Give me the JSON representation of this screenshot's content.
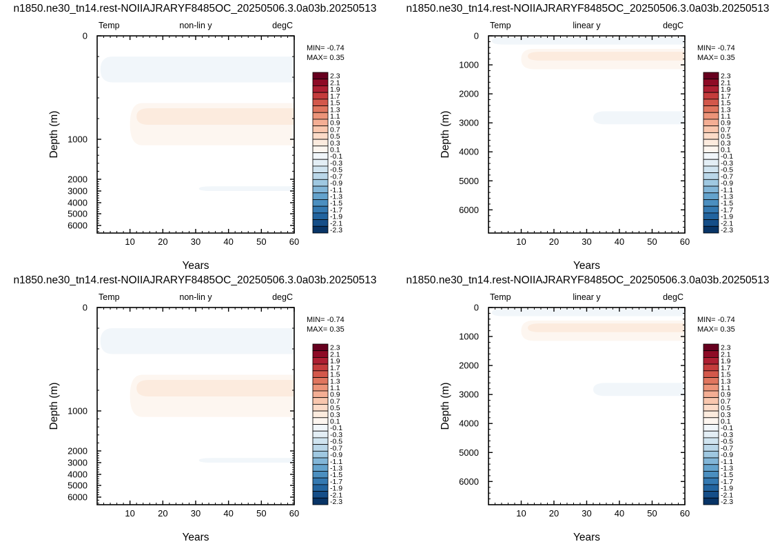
{
  "chart_data": [
    {
      "type": "heatmap",
      "title": "n1850.ne30_tn14.rest-NOIIAJRARYF8485OC_20250506.3.0a03b.20250513",
      "left_label": "Temp",
      "center_label": "non-lin y",
      "right_label": "degC",
      "xlabel": "Years",
      "ylabel": "Depth (m)",
      "x_ticks": [
        "10",
        "20",
        "30",
        "40",
        "50",
        "60"
      ],
      "y_ticks": [
        "0",
        "1000",
        "2000",
        "3000",
        "4000",
        "5000",
        "6000"
      ],
      "min_text": "MIN= -0.74",
      "max_text": "MAX=  0.35",
      "xlim": [
        0,
        60
      ],
      "ylim": [
        0,
        6500
      ],
      "y_scale": "non-linear",
      "colorbar_labels": [
        "2.3",
        "2.1",
        "1.9",
        "1.7",
        "1.5",
        "1.3",
        "1.1",
        "0.9",
        "0.7",
        "0.5",
        "0.3",
        "0.1",
        "-0.1",
        "-0.3",
        "-0.5",
        "-0.7",
        "-0.9",
        "-1.1",
        "-1.3",
        "-1.5",
        "-1.7",
        "-1.9",
        "-2.1",
        "-2.3"
      ],
      "colorbar_colors": [
        "#67001f",
        "#8e0b26",
        "#ad1f32",
        "#c43c3c",
        "#d3584b",
        "#e0765f",
        "#ec9479",
        "#f4ae94",
        "#f9c7ae",
        "#fcdbc8",
        "#fcebde",
        "#fdf6f0",
        "#f1f6fa",
        "#e3eef5",
        "#d0e4f0",
        "#bad7e9",
        "#9fc8e1",
        "#82b6d8",
        "#64a3cd",
        "#4b8fc0",
        "#3479b1",
        "#22649f",
        "#154e88",
        "#083466"
      ],
      "regions": [
        {
          "value": -0.1,
          "x": [
            1,
            60
          ],
          "y": [
            200,
            450
          ]
        },
        {
          "value": 0.1,
          "x": [
            10,
            60
          ],
          "y": [
            650,
            1150
          ]
        },
        {
          "value": 0.3,
          "x": [
            12,
            60
          ],
          "y": [
            700,
            860
          ]
        },
        {
          "value": -0.1,
          "x": [
            31,
            60
          ],
          "y": [
            2600,
            3000
          ]
        }
      ]
    },
    {
      "type": "heatmap",
      "title": "n1850.ne30_tn14.rest-NOIIAJRARYF8485OC_20250506.3.0a03b.20250513",
      "left_label": "Temp",
      "center_label": "linear y",
      "right_label": "degC",
      "xlabel": "Years",
      "ylabel": "Depth (m)",
      "x_ticks": [
        "10",
        "20",
        "30",
        "40",
        "50",
        "60"
      ],
      "y_ticks": [
        "0",
        "1000",
        "2000",
        "3000",
        "4000",
        "5000",
        "6000"
      ],
      "min_text": "MIN= -0.74",
      "max_text": "MAX=  0.35",
      "xlim": [
        0,
        60
      ],
      "ylim": [
        0,
        6800
      ],
      "y_scale": "linear",
      "colorbar_labels": [
        "2.3",
        "2.1",
        "1.9",
        "1.7",
        "1.5",
        "1.3",
        "1.1",
        "0.9",
        "0.7",
        "0.5",
        "0.3",
        "0.1",
        "-0.1",
        "-0.3",
        "-0.5",
        "-0.7",
        "-0.9",
        "-1.1",
        "-1.3",
        "-1.5",
        "-1.7",
        "-1.9",
        "-2.1",
        "-2.3"
      ],
      "colorbar_colors": [
        "#67001f",
        "#8e0b26",
        "#ad1f32",
        "#c43c3c",
        "#d3584b",
        "#e0765f",
        "#ec9479",
        "#f4ae94",
        "#f9c7ae",
        "#fcdbc8",
        "#fcebde",
        "#fdf6f0",
        "#f1f6fa",
        "#e3eef5",
        "#d0e4f0",
        "#bad7e9",
        "#9fc8e1",
        "#82b6d8",
        "#64a3cd",
        "#4b8fc0",
        "#3479b1",
        "#22649f",
        "#154e88",
        "#083466"
      ],
      "regions": [
        {
          "value": -0.1,
          "x": [
            1,
            60
          ],
          "y": [
            50,
            300
          ]
        },
        {
          "value": 0.1,
          "x": [
            10,
            60
          ],
          "y": [
            450,
            1150
          ]
        },
        {
          "value": 0.3,
          "x": [
            12,
            60
          ],
          "y": [
            550,
            850
          ]
        },
        {
          "value": -0.1,
          "x": [
            32,
            60
          ],
          "y": [
            2600,
            3050
          ]
        }
      ]
    },
    {
      "type": "heatmap",
      "title": "n1850.ne30_tn14.rest-NOIIAJRARYF8485OC_20250506.3.0a03b.20250513",
      "left_label": "Temp",
      "center_label": "non-lin y",
      "right_label": "degC",
      "xlabel": "Years",
      "ylabel": "Depth (m)",
      "x_ticks": [
        "10",
        "20",
        "30",
        "40",
        "50",
        "60"
      ],
      "y_ticks": [
        "0",
        "1000",
        "2000",
        "3000",
        "4000",
        "5000",
        "6000"
      ],
      "min_text": "MIN= -0.74",
      "max_text": "MAX=  0.35",
      "xlim": [
        0,
        60
      ],
      "ylim": [
        0,
        6500
      ],
      "y_scale": "non-linear",
      "colorbar_labels": [
        "2.3",
        "2.1",
        "1.9",
        "1.7",
        "1.5",
        "1.3",
        "1.1",
        "0.9",
        "0.7",
        "0.5",
        "0.3",
        "0.1",
        "-0.1",
        "-0.3",
        "-0.5",
        "-0.7",
        "-0.9",
        "-1.1",
        "-1.3",
        "-1.5",
        "-1.7",
        "-1.9",
        "-2.1",
        "-2.3"
      ],
      "colorbar_colors": [
        "#67001f",
        "#8e0b26",
        "#ad1f32",
        "#c43c3c",
        "#d3584b",
        "#e0765f",
        "#ec9479",
        "#f4ae94",
        "#f9c7ae",
        "#fcdbc8",
        "#fcebde",
        "#fdf6f0",
        "#f1f6fa",
        "#e3eef5",
        "#d0e4f0",
        "#bad7e9",
        "#9fc8e1",
        "#82b6d8",
        "#64a3cd",
        "#4b8fc0",
        "#3479b1",
        "#22649f",
        "#154e88",
        "#083466"
      ],
      "regions": [
        {
          "value": -0.1,
          "x": [
            1,
            60
          ],
          "y": [
            200,
            450
          ]
        },
        {
          "value": 0.1,
          "x": [
            10,
            60
          ],
          "y": [
            650,
            1150
          ]
        },
        {
          "value": 0.3,
          "x": [
            12,
            60
          ],
          "y": [
            700,
            860
          ]
        },
        {
          "value": -0.1,
          "x": [
            31,
            60
          ],
          "y": [
            2600,
            3000
          ]
        }
      ]
    },
    {
      "type": "heatmap",
      "title": "n1850.ne30_tn14.rest-NOIIAJRARYF8485OC_20250506.3.0a03b.20250513",
      "left_label": "Temp",
      "center_label": "linear y",
      "right_label": "degC",
      "xlabel": "Years",
      "ylabel": "Depth (m)",
      "x_ticks": [
        "10",
        "20",
        "30",
        "40",
        "50",
        "60"
      ],
      "y_ticks": [
        "0",
        "1000",
        "2000",
        "3000",
        "4000",
        "5000",
        "6000"
      ],
      "min_text": "MIN= -0.74",
      "max_text": "MAX=  0.35",
      "xlim": [
        0,
        60
      ],
      "ylim": [
        0,
        6800
      ],
      "y_scale": "linear",
      "colorbar_labels": [
        "2.3",
        "2.1",
        "1.9",
        "1.7",
        "1.5",
        "1.3",
        "1.1",
        "0.9",
        "0.7",
        "0.5",
        "0.3",
        "0.1",
        "-0.1",
        "-0.3",
        "-0.5",
        "-0.7",
        "-0.9",
        "-1.1",
        "-1.3",
        "-1.5",
        "-1.7",
        "-1.9",
        "-2.1",
        "-2.3"
      ],
      "colorbar_colors": [
        "#67001f",
        "#8e0b26",
        "#ad1f32",
        "#c43c3c",
        "#d3584b",
        "#e0765f",
        "#ec9479",
        "#f4ae94",
        "#f9c7ae",
        "#fcdbc8",
        "#fcebde",
        "#fdf6f0",
        "#f1f6fa",
        "#e3eef5",
        "#d0e4f0",
        "#bad7e9",
        "#9fc8e1",
        "#82b6d8",
        "#64a3cd",
        "#4b8fc0",
        "#3479b1",
        "#22649f",
        "#154e88",
        "#083466"
      ],
      "regions": [
        {
          "value": -0.1,
          "x": [
            1,
            60
          ],
          "y": [
            50,
            300
          ]
        },
        {
          "value": 0.1,
          "x": [
            10,
            60
          ],
          "y": [
            450,
            1150
          ]
        },
        {
          "value": 0.3,
          "x": [
            12,
            60
          ],
          "y": [
            550,
            850
          ]
        },
        {
          "value": -0.1,
          "x": [
            32,
            60
          ],
          "y": [
            2600,
            3050
          ]
        }
      ]
    }
  ]
}
